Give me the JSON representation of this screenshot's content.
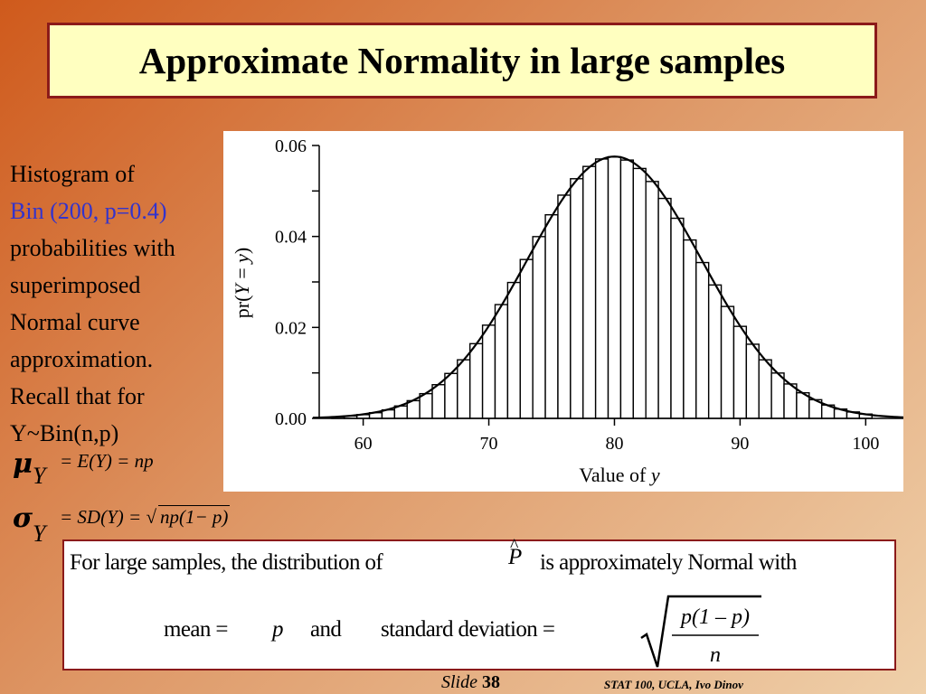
{
  "title": "Approximate Normality in large samples",
  "description": {
    "line1": "Histogram of",
    "line2": "Bin (200, p=0.4)",
    "line3": "probabilities with",
    "line4": "superimposed",
    "line5": "Normal curve",
    "line6": "approximation.",
    "line7": "Recall that for",
    "line8": "Y~Bin(n,p)"
  },
  "formulas": {
    "mu_symbol": "μ",
    "mu_subscript": "Y",
    "mu_expr": "= E(Y) = np",
    "sigma_symbol": "σ",
    "sigma_subscript": "Y",
    "sigma_expr_prefix": "= SD(Y) =",
    "sigma_root": "np(1− p)"
  },
  "bottom_box": {
    "row1_text": "For large samples,   the distribution of",
    "phat_symbol": "P",
    "hat_mark": "^",
    "row1_tail": "is approximately Normal with",
    "mean_label": "mean  =",
    "mean_value": "p",
    "and_label": "and",
    "sd_label": "standard deviation   =",
    "frac_numerator": "p(1 – p)",
    "frac_denominator": "n"
  },
  "footer": {
    "slide_word": "Slide",
    "slide_number": "38",
    "credit": "STAT 100, UCLA, Ivo Dinov"
  },
  "chart_data": {
    "type": "bar",
    "subtype": "histogram with normal curve overlay",
    "distribution": "Binomial",
    "n": 200,
    "p": 0.4,
    "x_min": 58,
    "x_max": 100,
    "xlim": [
      56.5,
      103
    ],
    "ylim": [
      0,
      0.06
    ],
    "x_ticks": [
      60,
      70,
      80,
      90,
      100
    ],
    "y_ticks": [
      0.0,
      0.02,
      0.04,
      0.06
    ],
    "y_tick_labels": [
      "0.00",
      "0.02",
      "0.04",
      "0.06"
    ],
    "xlabel": "Value of",
    "xlabel_var": "y",
    "ylabel": "pr(Y = y)",
    "ylabel_prefix": "pr(",
    "ylabel_var": "Y",
    "ylabel_eq": " = ",
    "ylabel_val": "y",
    "ylabel_suffix": ")",
    "overlay": {
      "type": "normal",
      "mean": 80,
      "sd": 6.93
    },
    "bar_fill": "#ffffff",
    "bar_stroke": "#000000"
  }
}
